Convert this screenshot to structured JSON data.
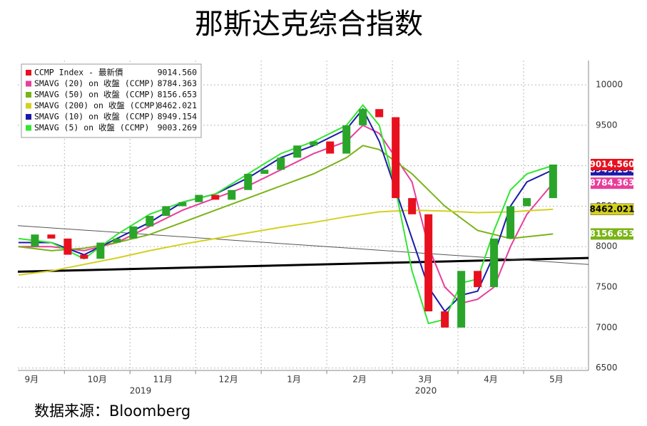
{
  "chart_data": {
    "type": "line",
    "title": "那斯达克综合指数",
    "source": "数据来源：Bloomberg",
    "year_labels": [
      "2019",
      "2020"
    ],
    "xlim": [
      0.29,
      8.99
    ],
    "ylim": [
      6470,
      10300
    ],
    "yticks": [
      6500,
      7000,
      7500,
      8000,
      8500,
      9000,
      9500,
      10000
    ],
    "xticks": [
      {
        "value": 0,
        "label": "9月"
      },
      {
        "value": 1,
        "label": "10月"
      },
      {
        "value": 2,
        "label": "11月"
      },
      {
        "value": 3,
        "label": "12月"
      },
      {
        "value": 4,
        "label": "1月"
      },
      {
        "value": 5,
        "label": "2月"
      },
      {
        "value": 6,
        "label": "3月"
      },
      {
        "value": 7,
        "label": "4月"
      },
      {
        "value": 8,
        "label": "5月"
      }
    ],
    "grid": true,
    "legend": "upper left",
    "series": [
      {
        "name": "CCMP Index - 最新價",
        "color": "#e8101e",
        "marker": "bar",
        "up_color": "#2aa52a",
        "x": [
          0.3,
          0.55,
          0.8,
          1.05,
          1.3,
          1.55,
          1.8,
          2.05,
          2.3,
          2.55,
          2.8,
          3.05,
          3.3,
          3.55,
          3.8,
          4.05,
          4.3,
          4.55,
          4.8,
          5.05,
          5.3,
          5.55,
          5.8,
          6.05,
          6.3,
          6.55,
          6.8,
          7.05,
          7.3,
          7.55,
          7.8,
          8.05,
          8.45
        ],
        "values": [
          8000,
          8150,
          8100,
          7900,
          7850,
          8050,
          8100,
          8250,
          8380,
          8500,
          8550,
          8640,
          8580,
          8700,
          8900,
          8950,
          9100,
          9250,
          9300,
          9150,
          9500,
          9700,
          9600,
          8600,
          8400,
          7200,
          7000,
          7700,
          7500,
          8100,
          8500,
          8600,
          9014.56
        ],
        "value_labels": [
          null,
          null,
          null,
          null,
          null,
          null,
          null,
          null,
          null,
          null,
          null,
          null,
          null,
          null,
          null,
          null,
          null,
          null,
          null,
          null,
          null,
          null,
          null,
          null,
          null,
          null,
          null,
          null,
          null,
          null,
          null,
          null,
          "9014.560"
        ]
      },
      {
        "name": "SMAVG (20)  on 收盤 (CCMP)",
        "color": "#e83e9b",
        "x": [
          0.3,
          0.8,
          1.3,
          1.8,
          2.3,
          2.8,
          3.3,
          3.8,
          4.3,
          4.8,
          5.3,
          5.55,
          5.8,
          6.3,
          6.55,
          6.8,
          7.05,
          7.3,
          7.55,
          7.8,
          8.05,
          8.45
        ],
        "values": [
          8000,
          8000,
          7950,
          8050,
          8250,
          8450,
          8600,
          8750,
          8950,
          9150,
          9300,
          9500,
          9400,
          8800,
          8000,
          7500,
          7300,
          7350,
          7500,
          8000,
          8400,
          8784.363
        ],
        "value_labels": [
          null,
          null,
          null,
          null,
          null,
          null,
          null,
          null,
          null,
          null,
          null,
          null,
          null,
          null,
          null,
          null,
          null,
          null,
          null,
          null,
          null,
          "8784.363"
        ]
      },
      {
        "name": "SMAVG (50)  on 收盤 (CCMP)",
        "color": "#7ab317",
        "x": [
          0.3,
          0.8,
          1.3,
          1.8,
          2.3,
          2.8,
          3.3,
          3.8,
          4.3,
          4.8,
          5.3,
          5.55,
          5.8,
          6.3,
          6.8,
          7.3,
          7.8,
          8.45
        ],
        "values": [
          8000,
          7950,
          7980,
          8050,
          8150,
          8300,
          8450,
          8600,
          8750,
          8900,
          9100,
          9250,
          9200,
          8900,
          8500,
          8200,
          8100,
          8156.653
        ],
        "value_labels": [
          null,
          null,
          null,
          null,
          null,
          null,
          null,
          null,
          null,
          null,
          null,
          null,
          null,
          null,
          null,
          null,
          null,
          "8156.653"
        ]
      },
      {
        "name": "SMAVG (200)  on 收盤 (CCMP)",
        "color": "#d4d020",
        "x": [
          0.3,
          0.8,
          1.3,
          1.8,
          2.3,
          2.8,
          3.3,
          3.8,
          4.3,
          4.8,
          5.3,
          5.8,
          6.3,
          6.8,
          7.3,
          7.8,
          8.45
        ],
        "values": [
          7650,
          7700,
          7780,
          7860,
          7950,
          8030,
          8100,
          8170,
          8240,
          8300,
          8370,
          8430,
          8450,
          8440,
          8420,
          8430,
          8462.021
        ],
        "value_labels": [
          null,
          null,
          null,
          null,
          null,
          null,
          null,
          null,
          null,
          null,
          null,
          null,
          null,
          null,
          null,
          null,
          "8462.021"
        ]
      },
      {
        "name": "SMAVG (10)  on 收盤 (CCMP)",
        "color": "#1a1aa8",
        "x": [
          0.3,
          0.8,
          1.3,
          1.8,
          2.3,
          2.8,
          3.3,
          3.8,
          4.3,
          4.8,
          5.3,
          5.55,
          5.8,
          6.3,
          6.55,
          6.8,
          7.05,
          7.3,
          7.55,
          7.8,
          8.05,
          8.45
        ],
        "values": [
          8050,
          8050,
          7900,
          8100,
          8300,
          8550,
          8650,
          8850,
          9100,
          9250,
          9450,
          9700,
          9300,
          8100,
          7500,
          7200,
          7400,
          7450,
          7900,
          8500,
          8800,
          8949.154
        ],
        "value_labels": [
          null,
          null,
          null,
          null,
          null,
          null,
          null,
          null,
          null,
          null,
          null,
          null,
          null,
          null,
          null,
          null,
          null,
          null,
          null,
          null,
          null,
          "8949.154"
        ]
      },
      {
        "name": "SMAVG (5)  on 收盤 (CCMP)",
        "color": "#33e533",
        "x": [
          0.3,
          0.8,
          1.3,
          1.8,
          2.3,
          2.8,
          3.3,
          3.8,
          4.3,
          4.8,
          5.3,
          5.55,
          5.8,
          6.05,
          6.3,
          6.55,
          6.8,
          7.05,
          7.3,
          7.55,
          7.8,
          8.05,
          8.45
        ],
        "values": [
          8100,
          8050,
          7850,
          8150,
          8400,
          8550,
          8650,
          8900,
          9150,
          9300,
          9500,
          9750,
          9500,
          8700,
          7700,
          7050,
          7100,
          7550,
          7600,
          8200,
          8700,
          8900,
          9003.269
        ],
        "value_labels": [
          null,
          null,
          null,
          null,
          null,
          null,
          null,
          null,
          null,
          null,
          null,
          null,
          null,
          null,
          null,
          null,
          null,
          null,
          null,
          null,
          null,
          null,
          "9003.269"
        ]
      }
    ],
    "trendlines": [
      {
        "color": "#000000",
        "width": 3,
        "x": [
          0.29,
          8.99
        ],
        "values": [
          7690,
          7860
        ]
      },
      {
        "color": "#555555",
        "width": 1,
        "x": [
          0.29,
          8.99
        ],
        "values": [
          8260,
          7780
        ]
      }
    ]
  }
}
